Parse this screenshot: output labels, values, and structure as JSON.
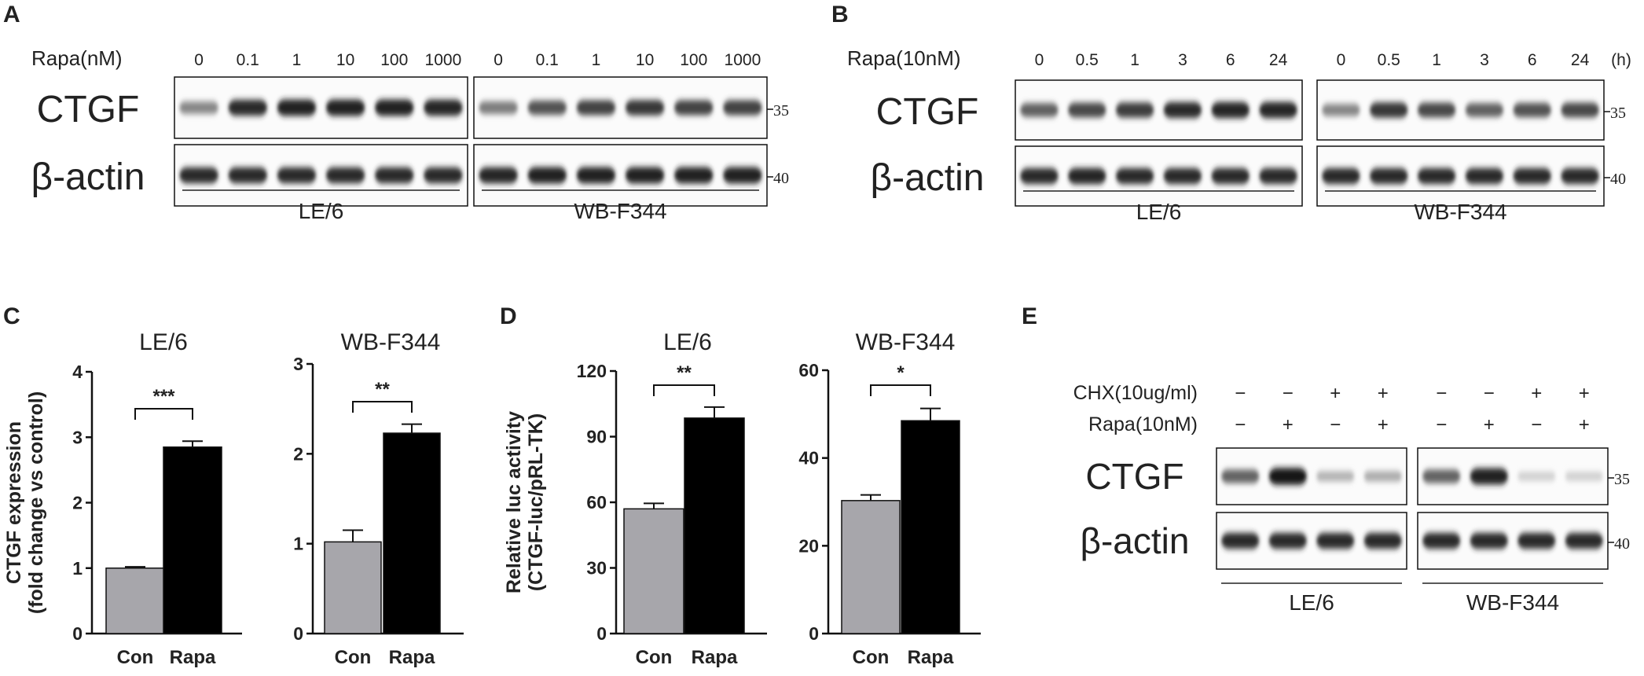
{
  "panels": {
    "A": {
      "label": "A",
      "treatment_label": "Rapa(nM)",
      "lanes": [
        "0",
        "0.1",
        "1",
        "10",
        "100",
        "1000"
      ],
      "rows": [
        {
          "label": "CTGF",
          "marker": "35",
          "left_levels": [
            0.45,
            0.85,
            0.9,
            0.9,
            0.9,
            0.88
          ],
          "right_levels": [
            0.5,
            0.68,
            0.75,
            0.8,
            0.75,
            0.75
          ]
        },
        {
          "label": "β-actin",
          "marker": "40",
          "left_levels": [
            0.85,
            0.85,
            0.85,
            0.85,
            0.85,
            0.85
          ],
          "right_levels": [
            0.88,
            0.9,
            0.9,
            0.9,
            0.9,
            0.9
          ]
        }
      ],
      "cell_lines": [
        "LE/6",
        "WB-F344"
      ]
    },
    "B": {
      "label": "B",
      "treatment_label": "Rapa(10nM)",
      "lanes": [
        "0",
        "0.5",
        "1",
        "3",
        "6",
        "24"
      ],
      "unit": "(h)",
      "rows": [
        {
          "label": "CTGF",
          "marker": "35",
          "left_levels": [
            0.62,
            0.72,
            0.78,
            0.85,
            0.88,
            0.88
          ],
          "right_levels": [
            0.45,
            0.8,
            0.72,
            0.62,
            0.68,
            0.72
          ]
        },
        {
          "label": "β-actin",
          "marker": "40",
          "left_levels": [
            0.85,
            0.88,
            0.85,
            0.85,
            0.85,
            0.85
          ],
          "right_levels": [
            0.85,
            0.85,
            0.85,
            0.85,
            0.85,
            0.85
          ]
        }
      ],
      "cell_lines": [
        "LE/6",
        "WB-F344"
      ]
    },
    "C": {
      "label": "C"
    },
    "D": {
      "label": "D"
    },
    "E": {
      "label": "E",
      "conditions": [
        {
          "label": "CHX(10ug/ml)",
          "signs": [
            "−",
            "−",
            "+",
            "+",
            "−",
            "−",
            "+",
            "+"
          ]
        },
        {
          "label": "Rapa(10nM)",
          "signs": [
            "−",
            "+",
            "−",
            "+",
            "−",
            "+",
            "−",
            "+"
          ]
        }
      ],
      "rows": [
        {
          "label": "CTGF",
          "marker": "35",
          "left_levels": [
            0.6,
            0.95,
            0.25,
            0.28
          ],
          "right_levels": [
            0.6,
            0.9,
            0.12,
            0.12
          ]
        },
        {
          "label": "β-actin",
          "marker": "40",
          "left_levels": [
            0.85,
            0.85,
            0.85,
            0.85
          ],
          "right_levels": [
            0.85,
            0.85,
            0.85,
            0.85
          ]
        }
      ],
      "cell_lines": [
        "LE/6",
        "WB-F344"
      ]
    }
  },
  "chart_data": [
    {
      "type": "bar",
      "panel": "C",
      "title": "LE/6",
      "categories": [
        "Con",
        "Rapa"
      ],
      "values": [
        1.0,
        2.85
      ],
      "errors": [
        0.02,
        0.09
      ],
      "bar_colors": [
        "#a7a6ab",
        "#000000"
      ],
      "ylabel": "CTGF expression (fold change vs control)",
      "ylim": [
        0,
        4
      ],
      "yticks": [
        "0",
        "1",
        "2",
        "3",
        "4"
      ],
      "significance": "***"
    },
    {
      "type": "bar",
      "panel": "C",
      "title": "WB-F344",
      "categories": [
        "Con",
        "Rapa"
      ],
      "values": [
        1.02,
        2.23
      ],
      "errors": [
        0.13,
        0.1
      ],
      "bar_colors": [
        "#a7a6ab",
        "#000000"
      ],
      "ylim": [
        0,
        3
      ],
      "yticks": [
        "0",
        "1",
        "2",
        "3"
      ],
      "significance": "**"
    },
    {
      "type": "bar",
      "panel": "D",
      "title": "LE/6",
      "categories": [
        "Con",
        "Rapa"
      ],
      "values": [
        57,
        98.5
      ],
      "errors": [
        2.5,
        5
      ],
      "bar_colors": [
        "#a7a6ab",
        "#000000"
      ],
      "ylabel": "Relative luc activity (CTGF-luc/pRL-TK)",
      "ylim": [
        0,
        120
      ],
      "yticks": [
        "0",
        "30",
        "60",
        "90",
        "120"
      ],
      "significance": "**"
    },
    {
      "type": "bar",
      "panel": "D",
      "title": "WB-F344",
      "categories": [
        "Con",
        "Rapa"
      ],
      "values": [
        30.3,
        48.5
      ],
      "errors": [
        1.3,
        2.8
      ],
      "bar_colors": [
        "#a7a6ab",
        "#000000"
      ],
      "ylim": [
        0,
        60
      ],
      "yticks": [
        "0",
        "20",
        "40",
        "60"
      ],
      "significance": "*"
    }
  ]
}
